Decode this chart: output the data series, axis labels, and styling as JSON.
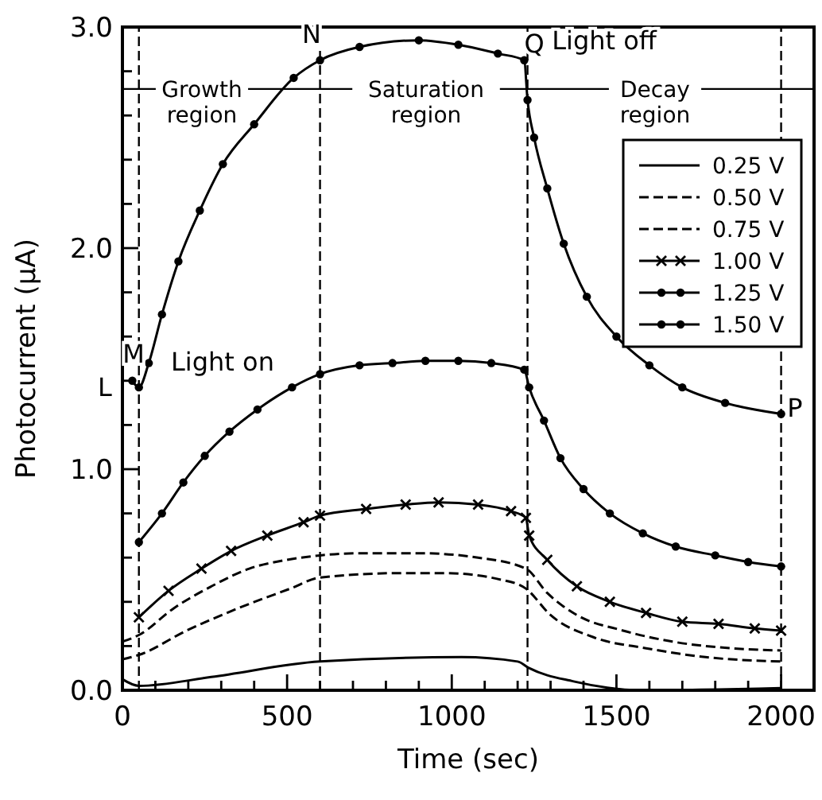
{
  "chart_data": {
    "type": "line",
    "xlabel": "Time (sec)",
    "ylabel": "Photocurrent (μA)",
    "xlim": [
      0,
      2100
    ],
    "ylim": [
      0,
      3.0
    ],
    "xticks": [
      0,
      {
        "value": 100,
        "label": null
      },
      {
        "value": 200,
        "label": null
      },
      {
        "value": 300,
        "label": null
      },
      {
        "value": 400,
        "label": null
      },
      500,
      {
        "value": 600,
        "label": null
      },
      {
        "value": 700,
        "label": null
      },
      {
        "value": 800,
        "label": null
      },
      {
        "value": 900,
        "label": null
      },
      1000,
      {
        "value": 1100,
        "label": null
      },
      {
        "value": 1200,
        "label": null
      },
      {
        "value": 1300,
        "label": null
      },
      {
        "value": 1400,
        "label": null
      },
      1500,
      {
        "value": 1600,
        "label": null
      },
      {
        "value": 1700,
        "label": null
      },
      {
        "value": 1800,
        "label": null
      },
      {
        "value": 1900,
        "label": null
      },
      2000
    ],
    "yticks": [
      {
        "value": 0,
        "label": "0.0"
      },
      {
        "value": 0.2,
        "label": null
      },
      {
        "value": 0.4,
        "label": null
      },
      {
        "value": 0.6,
        "label": null
      },
      {
        "value": 0.8,
        "label": null
      },
      {
        "value": 1,
        "label": "1.0"
      },
      {
        "value": 1.2,
        "label": null
      },
      {
        "value": 1.4,
        "label": null
      },
      {
        "value": 1.6,
        "label": null
      },
      {
        "value": 1.8,
        "label": null
      },
      {
        "value": 2,
        "label": "2.0"
      },
      {
        "value": 2.2,
        "label": null
      },
      {
        "value": 2.4,
        "label": null
      },
      {
        "value": 2.6,
        "label": null
      },
      {
        "value": 2.8,
        "label": null
      },
      {
        "value": 3,
        "label": "3.0"
      }
    ],
    "grid": false,
    "legend": "right",
    "series": [
      {
        "name": "0.25 V",
        "color": "#000000",
        "line_style": "solid",
        "marker": "none",
        "x": [
          0,
          50,
          270,
          600,
          1030,
          1200,
          1235,
          1370,
          1580,
          2000
        ],
        "values": [
          0.05,
          0.02,
          0.06,
          0.13,
          0.15,
          0.13,
          0.1,
          0.04,
          0.0,
          0.01
        ]
      },
      {
        "name": "0.50 V",
        "color": "#000000",
        "line_style": "dashed",
        "marker": "none",
        "x": [
          0,
          50,
          195,
          350,
          510,
          600,
          850,
          980,
          1150,
          1225,
          1300,
          1430,
          1590,
          1770,
          2000
        ],
        "values": [
          0.14,
          0.16,
          0.27,
          0.37,
          0.46,
          0.51,
          0.53,
          0.53,
          0.5,
          0.46,
          0.34,
          0.24,
          0.19,
          0.15,
          0.13
        ]
      },
      {
        "name": "0.75 V",
        "color": "#000000",
        "line_style": "dashed",
        "marker": "none",
        "x": [
          0,
          50,
          155,
          270,
          385,
          500,
          600,
          720,
          900,
          1080,
          1225,
          1290,
          1380,
          1520,
          1670,
          1850,
          2000
        ],
        "values": [
          0.22,
          0.25,
          0.37,
          0.47,
          0.55,
          0.59,
          0.61,
          0.62,
          0.62,
          0.6,
          0.55,
          0.44,
          0.34,
          0.27,
          0.22,
          0.19,
          0.18
        ]
      },
      {
        "name": "1.00 V",
        "color": "#000000",
        "line_style": "solid",
        "marker": "cross",
        "x": [
          50,
          140,
          240,
          330,
          440,
          550,
          600,
          740,
          860,
          960,
          1080,
          1180,
          1225,
          1235,
          1290,
          1380,
          1480,
          1590,
          1700,
          1810,
          1920,
          2000
        ],
        "values": [
          0.33,
          0.45,
          0.55,
          0.63,
          0.7,
          0.76,
          0.79,
          0.82,
          0.84,
          0.85,
          0.84,
          0.81,
          0.78,
          0.7,
          0.59,
          0.47,
          0.4,
          0.35,
          0.31,
          0.3,
          0.28,
          0.27
        ]
      },
      {
        "name": "1.25 V",
        "color": "#000000",
        "line_style": "solid",
        "marker": "circle",
        "x": [
          50,
          120,
          185,
          250,
          325,
          410,
          515,
          600,
          720,
          820,
          920,
          1020,
          1120,
          1220,
          1235,
          1280,
          1330,
          1400,
          1480,
          1580,
          1680,
          1800,
          1900,
          2000
        ],
        "values": [
          0.67,
          0.8,
          0.94,
          1.06,
          1.17,
          1.27,
          1.37,
          1.43,
          1.47,
          1.48,
          1.49,
          1.49,
          1.48,
          1.45,
          1.37,
          1.22,
          1.05,
          0.91,
          0.8,
          0.71,
          0.65,
          0.61,
          0.58,
          0.56
        ]
      },
      {
        "name": "1.50 V",
        "color": "#000000",
        "line_style": "solid",
        "marker": "circle",
        "x": [
          30,
          50,
          80,
          120,
          170,
          235,
          305,
          400,
          520,
          600,
          720,
          900,
          1020,
          1140,
          1220,
          1230,
          1250,
          1290,
          1340,
          1410,
          1500,
          1600,
          1700,
          1830,
          2000
        ],
        "values": [
          1.4,
          1.37,
          1.48,
          1.7,
          1.94,
          2.17,
          2.38,
          2.56,
          2.77,
          2.85,
          2.91,
          2.94,
          2.92,
          2.88,
          2.85,
          2.67,
          2.5,
          2.27,
          2.02,
          1.78,
          1.6,
          1.47,
          1.37,
          1.3,
          1.25
        ]
      }
    ],
    "ref_lines": [
      {
        "axis": "x",
        "value": 50,
        "line_style": "dashed"
      },
      {
        "axis": "x",
        "value": 600,
        "line_style": "dashed"
      },
      {
        "axis": "x",
        "value": 1230,
        "line_style": "dashed"
      },
      {
        "axis": "x",
        "value": 2000,
        "line_style": "dashed"
      },
      {
        "axis": "y",
        "value": 2.72,
        "line_style": "solid"
      }
    ],
    "annotations": [
      "Growth region",
      "Saturation region",
      "Decay region",
      "L",
      "M",
      "Light on",
      "N",
      "Q",
      "Light off",
      "P"
    ]
  }
}
